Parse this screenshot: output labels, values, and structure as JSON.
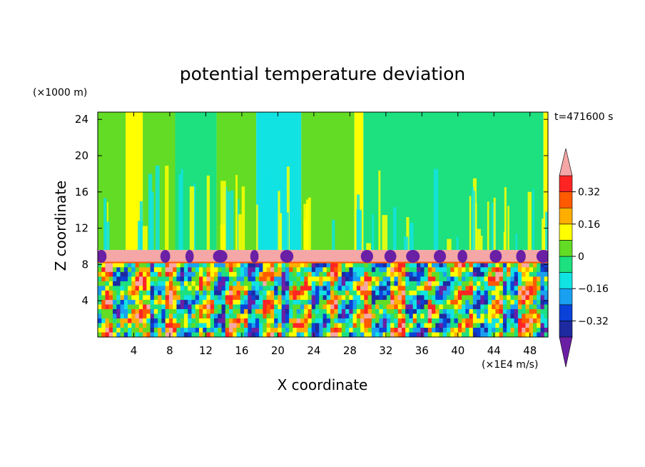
{
  "chart_data": {
    "type": "heatmap",
    "title": "potential temperature deviation",
    "xlabel": "X coordinate",
    "ylabel": "Z coordinate",
    "x_unit": "(×1E4 m/s)",
    "y_unit": "(×1000 m)",
    "time_label": "t=471600 s",
    "xlim": [
      0,
      50
    ],
    "ylim": [
      0,
      24.8
    ],
    "x_ticks": [
      4,
      8,
      12,
      16,
      20,
      24,
      28,
      32,
      36,
      40,
      44,
      48
    ],
    "y_ticks": [
      4,
      8,
      12,
      16,
      20,
      24
    ],
    "x_tick_labels": [
      "4",
      "8",
      "12",
      "16",
      "20",
      "24",
      "28",
      "32",
      "36",
      "40",
      "44",
      "48"
    ],
    "y_tick_labels": [
      "4",
      "8",
      "12",
      "16",
      "20",
      "24"
    ],
    "colorbar": {
      "levels": [
        -0.4,
        -0.32,
        -0.24,
        -0.16,
        -0.08,
        0,
        0.08,
        0.16,
        0.24,
        0.32,
        0.4
      ],
      "labels": [
        {
          "value": 0.32,
          "text": "0.32"
        },
        {
          "value": 0.16,
          "text": "0.16"
        },
        {
          "value": 0,
          "text": "0"
        },
        {
          "value": -0.16,
          "text": "−0.16"
        },
        {
          "value": -0.32,
          "text": "−0.32"
        }
      ],
      "colors": [
        "#6a1fa5",
        "#1e2aa0",
        "#0a42d8",
        "#1aa0f0",
        "#11e3e3",
        "#1de07f",
        "#62dc24",
        "#ffff00",
        "#ffae00",
        "#ff5a00",
        "#ff2424",
        "#f5a6a6"
      ],
      "extend": "both"
    },
    "regions": {
      "upper_layer": {
        "z_range": [
          9.6,
          24.8
        ],
        "dominant_values": [
          0.04,
          -0.04
        ]
      },
      "inversion_band": {
        "z_range": [
          8.2,
          9.6
        ],
        "value": 0.45
      },
      "lower_layer": {
        "z_range": [
          0,
          8.2
        ],
        "value_range": [
          -0.45,
          0.45
        ]
      }
    },
    "upper_columns": [
      {
        "x": [
          0,
          3.1
        ],
        "v": 0.05
      },
      {
        "x": [
          3.1,
          5.0
        ],
        "v": 0.15
      },
      {
        "x": [
          5.0,
          8.6
        ],
        "v": 0.05
      },
      {
        "x": [
          8.6,
          13.2
        ],
        "v": -0.04
      },
      {
        "x": [
          13.2,
          17.6
        ],
        "v": 0.05
      },
      {
        "x": [
          17.6,
          22.6
        ],
        "v": -0.1
      },
      {
        "x": [
          22.6,
          28.5
        ],
        "v": 0.05
      },
      {
        "x": [
          28.5,
          29.5
        ],
        "v": 0.15
      },
      {
        "x": [
          29.5,
          49.5
        ],
        "v": -0.04
      },
      {
        "x": [
          49.5,
          50
        ],
        "v": 0.15
      }
    ]
  }
}
